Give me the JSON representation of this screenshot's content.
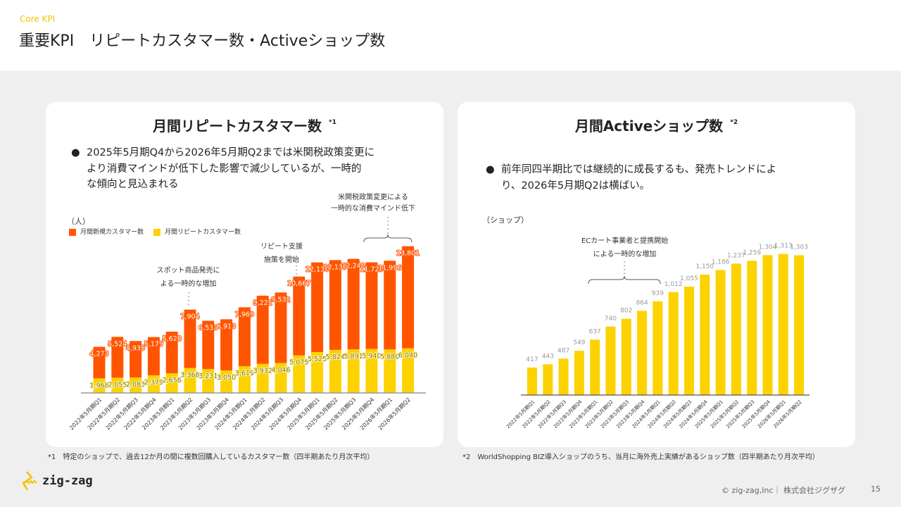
{
  "header": {
    "kicker": "Core KPI",
    "title": "重要KPI　リピートカスタマー数・Activeショップ数"
  },
  "left": {
    "title": "月間リピートカスタマー数",
    "note_mark": "*1",
    "bullet": [
      "2025年5月期Q4から2026年5月期Q2までは米関税政策変更に",
      "より消費マインドが低下した影響で減少しているが、一時的",
      "な傾向と見込まれる"
    ],
    "unit": "（人）",
    "annotations": {
      "tariff": [
        "米関税政策変更による",
        "一時的な消費マインド低下"
      ],
      "repeat": [
        "リピート支援",
        "施策を開始"
      ],
      "spot": [
        "スポット商品発売に",
        "よる一時的な増加"
      ]
    }
  },
  "right": {
    "title": "月間Activeショップ数",
    "note_mark": "*2",
    "bullet": [
      "前年同四半期比では継続的に成長するも、発売トレンドによ",
      "り、2026年5月期Q2は横ばい。"
    ],
    "unit": "（ショップ）",
    "annotations": {
      "ec": [
        "ECカート事業者と提携開始",
        "による一時的な増加"
      ]
    }
  },
  "chart_data": [
    {
      "type": "bar",
      "stacked": true,
      "categories": [
        "2022年5月期Q1",
        "2022年5月期Q2",
        "2022年5月期Q3",
        "2022年5月期Q4",
        "2023年5月期Q1",
        "2023年5月期Q2",
        "2023年5月期Q3",
        "2023年5月期Q4",
        "2024年5月期Q1",
        "2024年5月期Q2",
        "2024年5月期Q3",
        "2024年5月期Q4",
        "2025年5月期Q1",
        "2025年5月期Q2",
        "2025年5月期Q3",
        "2025年5月期Q4",
        "2026年5月期Q1",
        "2026年5月期Q2"
      ],
      "series": [
        {
          "name": "月間リピートカスタマー数",
          "color": "#fcd200",
          "values": [
            1968,
            2055,
            2083,
            2379,
            2656,
            3368,
            3231,
            3050,
            3619,
            3932,
            4046,
            5075,
            5525,
            5824,
            5891,
            5940,
            5880,
            6040
          ]
        },
        {
          "name": "月間新規カスタマー数",
          "color": "#ff5500",
          "values": [
            4273,
            5524,
            4935,
            5179,
            5628,
            7904,
            6533,
            6913,
            7969,
            9221,
            9532,
            10667,
            12130,
            12137,
            12240,
            11729,
            11996,
            13801
          ]
        }
      ],
      "legend": "top-left",
      "ylim": [
        0,
        20000
      ],
      "grid": false
    },
    {
      "type": "bar",
      "categories": [
        "2022年5月期Q1",
        "2022年5月期Q2",
        "2022年5月期Q3",
        "2022年5月期Q4",
        "2023年5月期Q1",
        "2023年5月期Q2",
        "2023年5月期Q3",
        "2023年5月期Q4",
        "2024年5月期Q1",
        "2024年5月期Q2",
        "2024年5月期Q3",
        "2024年5月期Q4",
        "2025年5月期Q1",
        "2025年5月期Q2",
        "2025年5月期Q3",
        "2025年5月期Q4",
        "2026年5月期Q1",
        "2026年5月期Q2"
      ],
      "values": [
        417,
        443,
        487,
        549,
        637,
        740,
        802,
        864,
        939,
        1012,
        1055,
        1150,
        1186,
        1237,
        1259,
        1304,
        1313,
        1303
      ],
      "color": "#fcd200",
      "ylim": [
        200,
        1400
      ],
      "grid": false
    }
  ],
  "footnotes": {
    "n1": "*1　特定のショップで、過去12か月の間に複数回購入しているカスタマー数（四半期あたり月次平均）",
    "n2": "*2　WorldShopping BIZ導入ショップのうち、当月に海外売上実績があるショップ数（四半期あたり月次平均）"
  },
  "footer": {
    "logo_text": "zig-zag",
    "copyright": "© zig-zag,Inc｜ 株式会社ジグザグ",
    "page": "15"
  }
}
